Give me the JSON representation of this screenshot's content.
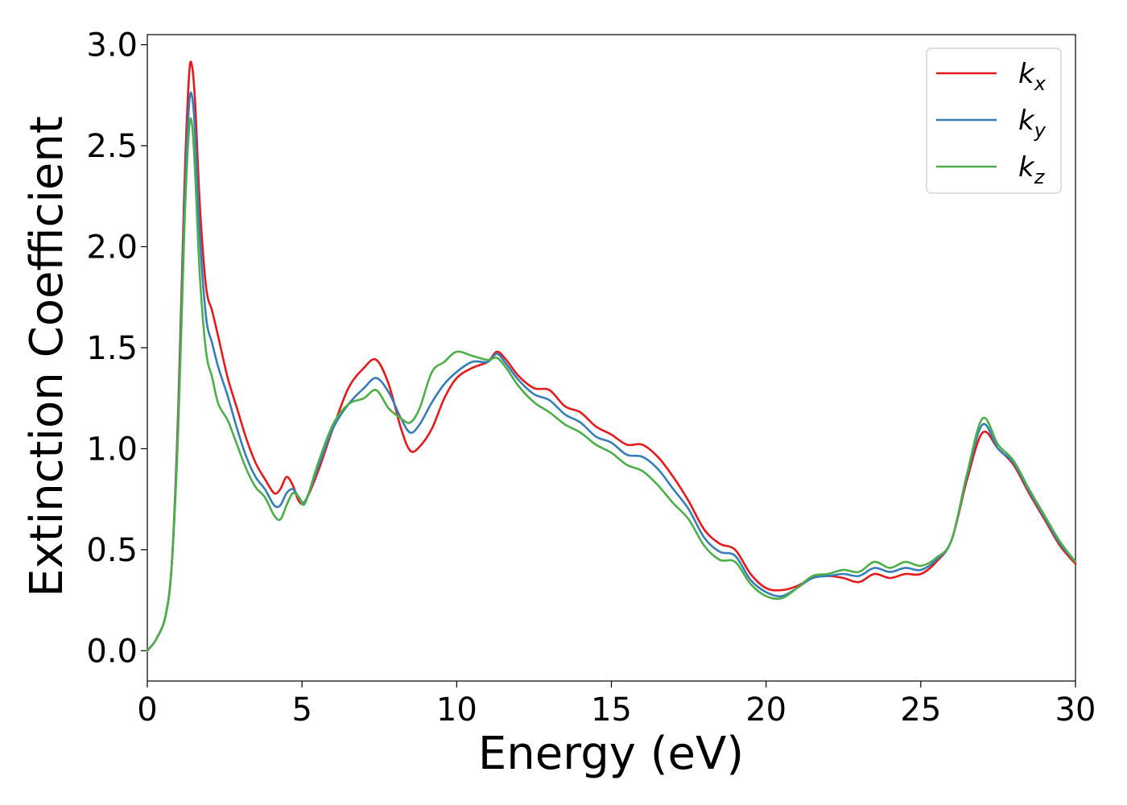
{
  "chart_data": {
    "type": "line",
    "xlabel": "Energy (eV)",
    "ylabel": "Extinction Coefficient",
    "xlim": [
      0,
      30
    ],
    "ylim": [
      -0.15,
      3.05
    ],
    "xticks": [
      0,
      5,
      10,
      15,
      20,
      25,
      30
    ],
    "xtick_labels": [
      "0",
      "5",
      "10",
      "15",
      "20",
      "25",
      "30"
    ],
    "yticks": [
      0.0,
      0.5,
      1.0,
      1.5,
      2.0,
      2.5,
      3.0
    ],
    "ytick_labels": [
      "0.0",
      "0.5",
      "1.0",
      "1.5",
      "2.0",
      "2.5",
      "3.0"
    ],
    "grid": false,
    "legend_position": "top-right",
    "series": [
      {
        "name": "k_x",
        "label_main": "k",
        "label_sub": "x",
        "color": "#e41a1c",
        "x": [
          0,
          0.3,
          0.6,
          0.8,
          1.0,
          1.2,
          1.35,
          1.45,
          1.55,
          1.7,
          1.9,
          2.1,
          2.3,
          2.6,
          2.9,
          3.2,
          3.5,
          3.8,
          4.1,
          4.3,
          4.5,
          4.7,
          4.9,
          5.1,
          5.5,
          6.0,
          6.5,
          7.0,
          7.4,
          7.8,
          8.2,
          8.5,
          8.8,
          9.2,
          9.6,
          10.0,
          10.5,
          11.0,
          11.3,
          11.6,
          12.0,
          12.5,
          13.0,
          13.5,
          14.0,
          14.5,
          15.0,
          15.5,
          16.0,
          16.5,
          17.0,
          17.5,
          18.0,
          18.5,
          19.0,
          19.5,
          20.0,
          20.5,
          21.0,
          21.5,
          22.0,
          22.5,
          23.0,
          23.5,
          24.0,
          24.5,
          25.0,
          25.5,
          26.0,
          26.5,
          27.0,
          27.5,
          28.0,
          28.5,
          29.0,
          29.5,
          30.0
        ],
        "values": [
          0.0,
          0.06,
          0.18,
          0.45,
          1.2,
          2.3,
          2.85,
          2.89,
          2.7,
          2.2,
          1.8,
          1.68,
          1.55,
          1.35,
          1.2,
          1.05,
          0.93,
          0.85,
          0.78,
          0.8,
          0.86,
          0.82,
          0.74,
          0.74,
          0.88,
          1.1,
          1.3,
          1.4,
          1.44,
          1.32,
          1.1,
          0.99,
          1.01,
          1.1,
          1.25,
          1.35,
          1.4,
          1.43,
          1.48,
          1.44,
          1.36,
          1.3,
          1.29,
          1.21,
          1.18,
          1.11,
          1.07,
          1.02,
          1.02,
          0.96,
          0.86,
          0.74,
          0.6,
          0.53,
          0.5,
          0.38,
          0.31,
          0.3,
          0.32,
          0.36,
          0.37,
          0.36,
          0.34,
          0.38,
          0.36,
          0.38,
          0.38,
          0.44,
          0.55,
          0.85,
          1.08,
          1.0,
          0.92,
          0.78,
          0.65,
          0.52,
          0.43
        ]
      },
      {
        "name": "k_y",
        "label_main": "k",
        "label_sub": "y",
        "color": "#377eb8",
        "x": [
          0,
          0.3,
          0.6,
          0.8,
          1.0,
          1.2,
          1.35,
          1.45,
          1.55,
          1.7,
          1.9,
          2.1,
          2.3,
          2.6,
          2.9,
          3.2,
          3.5,
          3.8,
          4.1,
          4.3,
          4.5,
          4.7,
          4.9,
          5.1,
          5.5,
          6.0,
          6.5,
          7.0,
          7.4,
          7.8,
          8.2,
          8.5,
          8.8,
          9.2,
          9.6,
          10.0,
          10.5,
          11.0,
          11.3,
          11.6,
          12.0,
          12.5,
          13.0,
          13.5,
          14.0,
          14.5,
          15.0,
          15.5,
          16.0,
          16.5,
          17.0,
          17.5,
          18.0,
          18.5,
          19.0,
          19.5,
          20.0,
          20.5,
          21.0,
          21.5,
          22.0,
          22.5,
          23.0,
          23.5,
          24.0,
          24.5,
          25.0,
          25.5,
          26.0,
          26.5,
          27.0,
          27.5,
          28.0,
          28.5,
          29.0,
          29.5,
          30.0
        ],
        "values": [
          0.0,
          0.06,
          0.18,
          0.45,
          1.15,
          2.2,
          2.7,
          2.74,
          2.55,
          2.05,
          1.65,
          1.52,
          1.4,
          1.26,
          1.1,
          0.96,
          0.86,
          0.8,
          0.72,
          0.72,
          0.78,
          0.8,
          0.76,
          0.74,
          0.9,
          1.1,
          1.22,
          1.3,
          1.35,
          1.28,
          1.15,
          1.08,
          1.12,
          1.23,
          1.32,
          1.38,
          1.43,
          1.43,
          1.47,
          1.42,
          1.34,
          1.27,
          1.24,
          1.17,
          1.13,
          1.06,
          1.03,
          0.97,
          0.96,
          0.9,
          0.8,
          0.7,
          0.56,
          0.49,
          0.47,
          0.35,
          0.29,
          0.27,
          0.31,
          0.36,
          0.37,
          0.38,
          0.37,
          0.41,
          0.39,
          0.41,
          0.4,
          0.45,
          0.55,
          0.87,
          1.12,
          1.0,
          0.93,
          0.79,
          0.66,
          0.53,
          0.44
        ]
      },
      {
        "name": "k_z",
        "label_main": "k",
        "label_sub": "z",
        "color": "#4daf4a",
        "x": [
          0,
          0.3,
          0.6,
          0.8,
          1.0,
          1.2,
          1.35,
          1.45,
          1.55,
          1.7,
          1.9,
          2.1,
          2.3,
          2.6,
          2.9,
          3.2,
          3.5,
          3.8,
          4.1,
          4.3,
          4.5,
          4.7,
          4.9,
          5.1,
          5.5,
          6.0,
          6.5,
          7.0,
          7.4,
          7.8,
          8.2,
          8.5,
          8.8,
          9.2,
          9.6,
          10.0,
          10.5,
          11.0,
          11.3,
          11.6,
          12.0,
          12.5,
          13.0,
          13.5,
          14.0,
          14.5,
          15.0,
          15.5,
          16.0,
          16.5,
          17.0,
          17.5,
          18.0,
          18.5,
          19.0,
          19.5,
          20.0,
          20.5,
          21.0,
          21.5,
          22.0,
          22.5,
          23.0,
          23.5,
          24.0,
          24.5,
          25.0,
          25.5,
          26.0,
          26.5,
          27.0,
          27.5,
          28.0,
          28.5,
          29.0,
          29.5,
          30.0
        ],
        "values": [
          0.0,
          0.06,
          0.18,
          0.45,
          1.1,
          2.1,
          2.58,
          2.6,
          2.35,
          1.85,
          1.48,
          1.35,
          1.22,
          1.14,
          1.02,
          0.9,
          0.81,
          0.76,
          0.67,
          0.65,
          0.72,
          0.78,
          0.76,
          0.73,
          0.92,
          1.12,
          1.22,
          1.25,
          1.29,
          1.2,
          1.15,
          1.13,
          1.2,
          1.38,
          1.43,
          1.48,
          1.46,
          1.44,
          1.45,
          1.4,
          1.31,
          1.23,
          1.18,
          1.12,
          1.08,
          1.02,
          0.98,
          0.92,
          0.89,
          0.82,
          0.73,
          0.65,
          0.52,
          0.45,
          0.44,
          0.33,
          0.27,
          0.26,
          0.31,
          0.37,
          0.38,
          0.4,
          0.39,
          0.44,
          0.41,
          0.44,
          0.42,
          0.46,
          0.55,
          0.88,
          1.15,
          1.02,
          0.94,
          0.8,
          0.67,
          0.54,
          0.44
        ]
      }
    ]
  }
}
